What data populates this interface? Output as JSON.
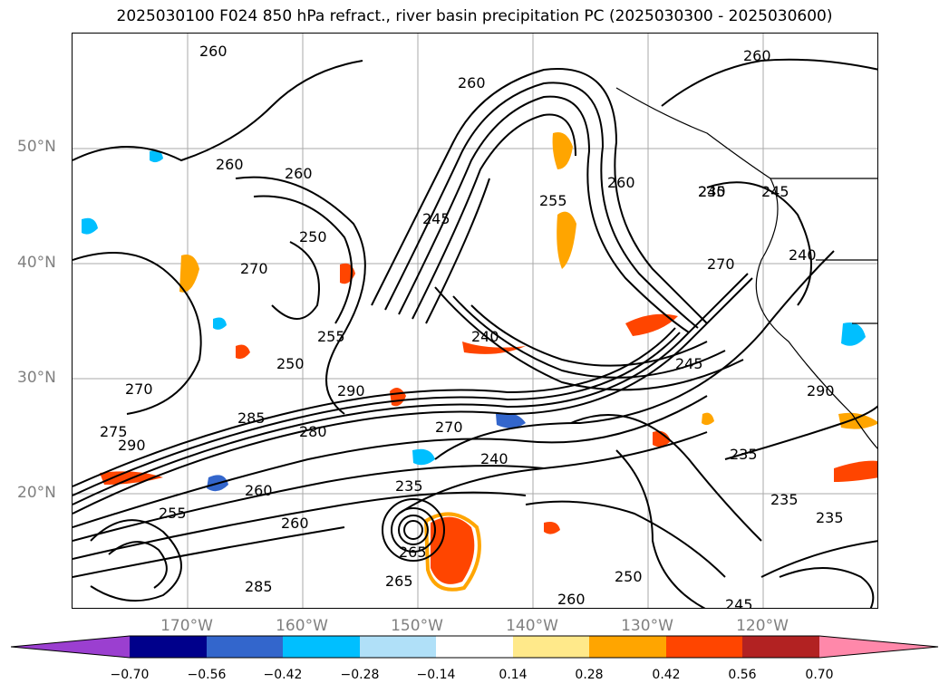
{
  "title": "2025030100 F024 850 hPa refract., river basin precipitation PC (2025030300 - 2025030600)",
  "map": {
    "lat_labels": [
      "50°N",
      "40°N",
      "30°N",
      "20°N"
    ],
    "lon_labels": [
      "170°W",
      "160°W",
      "150°W",
      "140°W",
      "130°W",
      "120°W"
    ],
    "contour_labels": [
      "260",
      "260",
      "260",
      "260",
      "255",
      "260",
      "240",
      "245",
      "260",
      "270",
      "250",
      "255",
      "270",
      "250",
      "290",
      "240",
      "270",
      "275",
      "285",
      "290",
      "240",
      "235",
      "235",
      "260",
      "280",
      "255",
      "235",
      "250",
      "245",
      "265",
      "260",
      "240",
      "270",
      "245",
      "235",
      "235",
      "245",
      "285",
      "265",
      "260",
      "290"
    ]
  },
  "colorbar": {
    "tick_labels": [
      "−0.70",
      "−0.56",
      "−0.42",
      "−0.28",
      "−0.14",
      "0.14",
      "0.28",
      "0.42",
      "0.56",
      "0.70"
    ],
    "colors": [
      "#9b3fd0",
      "#00008b",
      "#3366cc",
      "#00bfff",
      "#b0e0f8",
      "#ffffff",
      "#ffe98a",
      "#ffa500",
      "#ff4500",
      "#b22222",
      "#ff88aa"
    ]
  }
}
